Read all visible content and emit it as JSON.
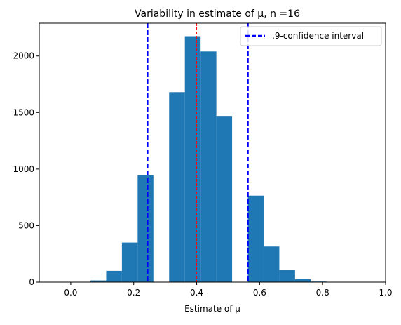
{
  "chart_data": {
    "type": "bar",
    "title": "Variability in estimate of μ, n =16",
    "xlabel": "Estimate of μ",
    "ylabel": "",
    "xlim": [
      -0.1,
      1.0
    ],
    "ylim": [
      0,
      2290
    ],
    "xticks": [
      0.0,
      0.2,
      0.4,
      0.6,
      0.8,
      1.0
    ],
    "xtick_labels": [
      "0.0",
      "0.2",
      "0.4",
      "0.6",
      "0.8",
      "1.0"
    ],
    "yticks": [
      0,
      500,
      1000,
      1500,
      2000
    ],
    "ytick_labels": [
      "0",
      "500",
      "1000",
      "1500",
      "2000"
    ],
    "bar_color": "#1f77b4",
    "bins": [
      {
        "left": 0.0625,
        "right": 0.1125,
        "count": 15
      },
      {
        "left": 0.1125,
        "right": 0.1625,
        "count": 100
      },
      {
        "left": 0.1625,
        "right": 0.2125,
        "count": 350
      },
      {
        "left": 0.2125,
        "right": 0.2625,
        "count": 945
      },
      {
        "left": 0.2625,
        "right": 0.3125,
        "count": 0
      },
      {
        "left": 0.3125,
        "right": 0.3625,
        "count": 1680
      },
      {
        "left": 0.3625,
        "right": 0.4125,
        "count": 2175
      },
      {
        "left": 0.4125,
        "right": 0.4625,
        "count": 2040
      },
      {
        "left": 0.4625,
        "right": 0.5125,
        "count": 1470
      },
      {
        "left": 0.5125,
        "right": 0.5625,
        "count": 0
      },
      {
        "left": 0.5625,
        "right": 0.6125,
        "count": 765
      },
      {
        "left": 0.6125,
        "right": 0.6625,
        "count": 315
      },
      {
        "left": 0.6625,
        "right": 0.7125,
        "count": 110
      },
      {
        "left": 0.7125,
        "right": 0.7625,
        "count": 25
      },
      {
        "left": 0.7625,
        "right": 0.8125,
        "count": 5
      }
    ],
    "confidence_interval": {
      "lower": 0.2437,
      "upper": 0.5625,
      "color": "#0000ff",
      "style": "dashed"
    },
    "mean_line": {
      "x": 0.4,
      "color": "#ff0000",
      "style": "dashed"
    },
    "legend": {
      "position": "top-right",
      "entries": [
        {
          "label": ".9-confidence interval",
          "color": "#0000ff",
          "style": "dashed"
        }
      ]
    }
  }
}
